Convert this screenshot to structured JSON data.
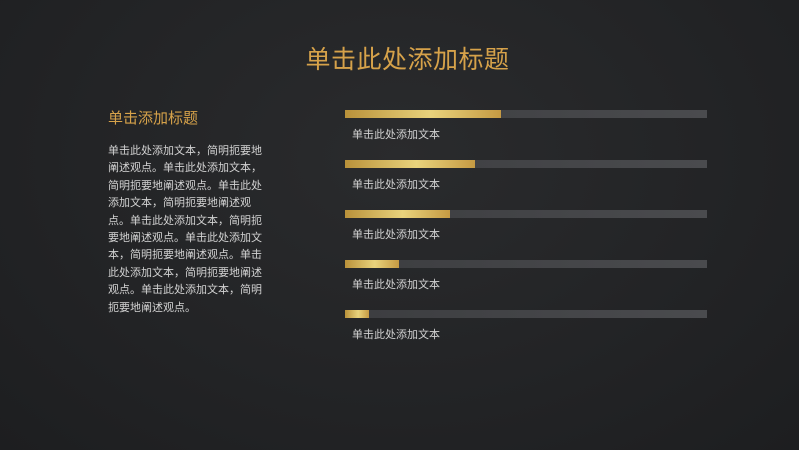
{
  "slide": {
    "title": "单击此处添加标题",
    "left": {
      "heading": "单击添加标题",
      "body": "单击此处添加文本，简明扼要地阐述观点。单击此处添加文本，简明扼要地阐述观点。单击此处添加文本，简明扼要地阐述观点。单击此处添加文本，简明扼要地阐述观点。单击此处添加文本，简明扼要地阐述观点。单击此处添加文本，简明扼要地阐述观点。单击此处添加文本，简明扼要地阐述观点。"
    },
    "bars": [
      {
        "label": "单击此处添加文本",
        "fraction": 0.43
      },
      {
        "label": "单击此处添加文本",
        "fraction": 0.36
      },
      {
        "label": "单击此处添加文本",
        "fraction": 0.29
      },
      {
        "label": "单击此处添加文本",
        "fraction": 0.15
      },
      {
        "label": "单击此处添加文本",
        "fraction": 0.065
      }
    ]
  },
  "colors": {
    "accent": "#d6a24a",
    "background": "#232426",
    "track": "#45464a",
    "text": "#d2d2d2"
  }
}
